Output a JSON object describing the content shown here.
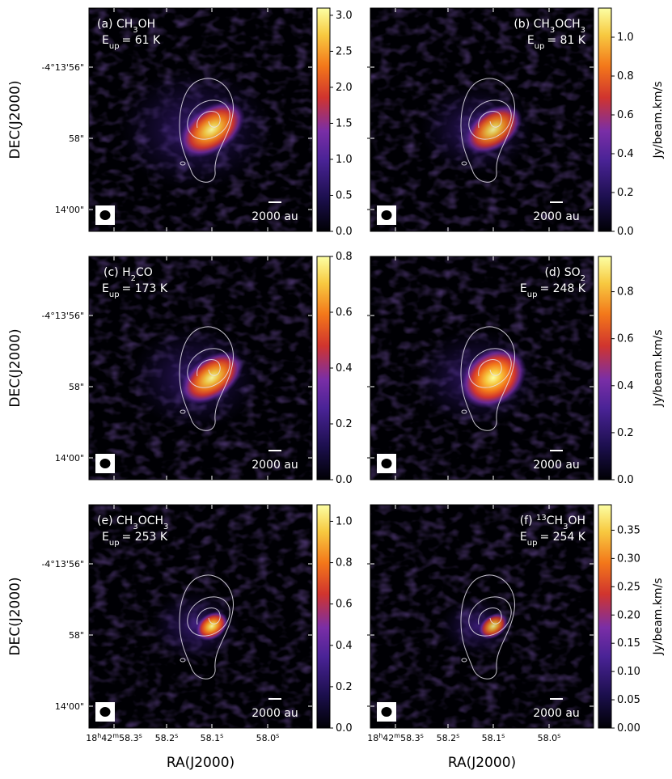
{
  "chart_data": {
    "type": "heatmap",
    "shared_axes": {
      "xlabel": "RA(J2000)",
      "ylabel": "DEC(J2000)",
      "x_ticks": [
        {
          "label": "18h42m58.3s",
          "parts": [
            "18",
            "h",
            "42",
            "m",
            "58.3",
            "s"
          ]
        },
        {
          "label": "58.2s",
          "parts": [
            "58.2",
            "s"
          ]
        },
        {
          "label": "58.1s",
          "parts": [
            "58.1",
            "s"
          ]
        },
        {
          "label": "58.0s",
          "parts": [
            "58.0",
            "s"
          ]
        }
      ],
      "y_ticks": [
        "-4°13'56\"",
        "58\"",
        "14'00\""
      ]
    },
    "scale_bar_label": "2000 au",
    "colorbar_label": "Jy/beam.km/s",
    "colormap": [
      "#000004",
      "#1c0f4e",
      "#4a2396",
      "#7a2ea6",
      "#d0342e",
      "#f3771a",
      "#f7c940",
      "#fcffa4"
    ],
    "panels": [
      {
        "id": "a",
        "label_prefix": "(a) ",
        "species": [
          [
            "CH",
            ""
          ],
          [
            "3",
            "sub"
          ],
          [
            "OH",
            ""
          ]
        ],
        "species_text": "CH3OH",
        "eup_text": "= 61 K",
        "vmax": 3.1,
        "cbar_ticks": [
          "0.0",
          "0.5",
          "1.0",
          "1.5",
          "2.0",
          "2.5",
          "3.0"
        ],
        "cbar_values": [
          0,
          0.5,
          1,
          1.5,
          2,
          2.5,
          3
        ],
        "show_cbar_label": false
      },
      {
        "id": "b",
        "label_prefix": "(b) ",
        "species": [
          [
            "CH",
            ""
          ],
          [
            "3",
            "sub"
          ],
          [
            "OCH",
            ""
          ],
          [
            "3",
            "sub"
          ]
        ],
        "species_text": "CH3OCH3",
        "eup_text": "= 81 K",
        "vmax": 1.15,
        "cbar_ticks": [
          "0.0",
          "0.2",
          "0.4",
          "0.6",
          "0.8",
          "1.0"
        ],
        "cbar_values": [
          0,
          0.2,
          0.4,
          0.6,
          0.8,
          1.0
        ],
        "show_cbar_label": true
      },
      {
        "id": "c",
        "label_prefix": "(c) ",
        "species": [
          [
            "H",
            ""
          ],
          [
            "2",
            "sub"
          ],
          [
            "CO",
            ""
          ]
        ],
        "species_text": "H2CO",
        "eup_text": "= 173 K",
        "vmax": 0.8,
        "cbar_ticks": [
          "0.0",
          "0.2",
          "0.4",
          "0.6",
          "0.8"
        ],
        "cbar_values": [
          0,
          0.2,
          0.4,
          0.6,
          0.8
        ],
        "show_cbar_label": false
      },
      {
        "id": "d",
        "label_prefix": "(d) ",
        "species": [
          [
            "SO",
            ""
          ],
          [
            "2",
            "sub"
          ]
        ],
        "species_text": "SO2",
        "eup_text": "= 248 K",
        "vmax": 0.95,
        "cbar_ticks": [
          "0.0",
          "0.2",
          "0.4",
          "0.6",
          "0.8"
        ],
        "cbar_values": [
          0,
          0.2,
          0.4,
          0.6,
          0.8
        ],
        "show_cbar_label": true
      },
      {
        "id": "e",
        "label_prefix": "(e) ",
        "species": [
          [
            "CH",
            ""
          ],
          [
            "3",
            "sub"
          ],
          [
            "OCH",
            ""
          ],
          [
            "3",
            "sub"
          ]
        ],
        "species_text": "CH3OCH3",
        "eup_text": "= 253 K",
        "vmax": 1.08,
        "cbar_ticks": [
          "0.0",
          "0.2",
          "0.4",
          "0.6",
          "0.8",
          "1.0"
        ],
        "cbar_values": [
          0,
          0.2,
          0.4,
          0.6,
          0.8,
          1.0
        ],
        "show_cbar_label": false
      },
      {
        "id": "f",
        "label_prefix": "(f) ",
        "species": [
          [
            "13",
            "sup"
          ],
          [
            "CH",
            ""
          ],
          [
            "3",
            "sub"
          ],
          [
            "OH",
            ""
          ]
        ],
        "species_text": "13CH3OH",
        "eup_text": "= 254 K",
        "vmax": 0.395,
        "cbar_ticks": [
          "0.00",
          "0.05",
          "0.10",
          "0.15",
          "0.20",
          "0.25",
          "0.30",
          "0.35"
        ],
        "cbar_values": [
          0,
          0.05,
          0.1,
          0.15,
          0.2,
          0.25,
          0.3,
          0.35
        ],
        "show_cbar_label": true
      }
    ]
  }
}
